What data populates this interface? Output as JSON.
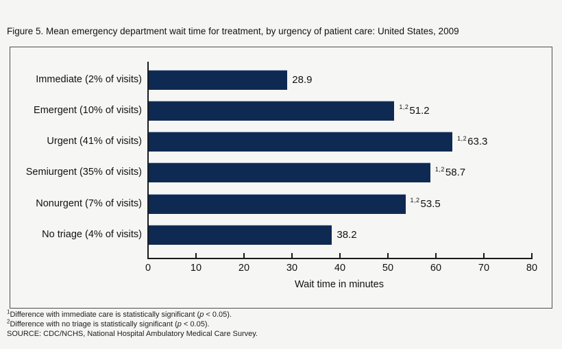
{
  "title": "Figure 5. Mean emergency department wait time for treatment, by urgency of patient care: United States, 2009",
  "colors": {
    "background": "#f5f5f4",
    "bar": "#0f2a52",
    "axis": "#1a1a1a",
    "frame_border": "#4d4d4d"
  },
  "chart_data": {
    "type": "bar",
    "orientation": "horizontal",
    "title": "Figure 5. Mean emergency department wait time for treatment, by urgency of patient care: United States, 2009",
    "categories": [
      "Immediate (2% of visits)",
      "Emergent (10% of visits)",
      "Urgent (41% of visits)",
      "Semiurgent (35% of visits)",
      "Nonurgent (7% of visits)",
      "No triage (4% of visits)"
    ],
    "values": [
      28.9,
      51.2,
      63.3,
      58.7,
      53.5,
      38.2
    ],
    "value_labels": [
      "28.9",
      "51.2",
      "63.3",
      "58.7",
      "53.5",
      "38.2"
    ],
    "value_superscripts": [
      "",
      "1,2",
      "1,2",
      "1,2",
      "1,2",
      ""
    ],
    "xlabel": "Wait time in minutes",
    "ylabel": "",
    "xlim": [
      0,
      80
    ],
    "xticks": [
      0,
      10,
      20,
      30,
      40,
      50,
      60,
      70,
      80
    ],
    "grid": false,
    "legend": "none",
    "bar_color": "#0f2a52"
  },
  "footnotes": [
    {
      "sup": "1",
      "before_p": "Difference with immediate care is statistically significant (",
      "p": "p",
      "after_p": " < 0.05)."
    },
    {
      "sup": "2",
      "before_p": "Difference with no triage is statistically significant (",
      "p": "p",
      "after_p": " < 0.05)."
    },
    {
      "sup": "",
      "before_p": "SOURCE: CDC/NCHS, National Hospital Ambulatory Medical Care Survey.",
      "p": "",
      "after_p": ""
    }
  ]
}
